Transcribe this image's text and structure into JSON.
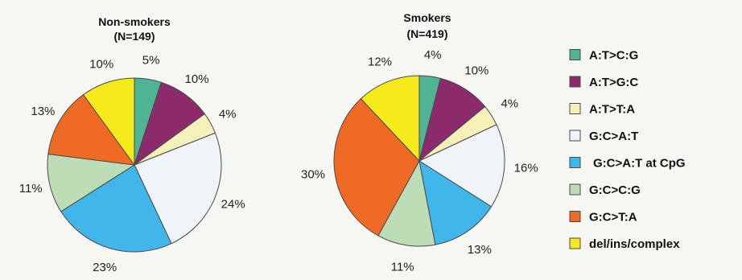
{
  "chart_data": [
    {
      "type": "pie",
      "title": "Non-smokers",
      "subtitle": "(N=149)",
      "categories": [
        "A:T>C:G",
        "A:T>G:C",
        "A:T>T:A",
        "G:C>A:T",
        "G:C>A:T at CpG",
        "G:C>C:G",
        "G:C>T:A",
        "del/ins/complex"
      ],
      "values": [
        5,
        10,
        4,
        24,
        23,
        11,
        13,
        10
      ],
      "labels": [
        "5%",
        "10%",
        "4%",
        "24%",
        "23%",
        "11%",
        "13%",
        "10%"
      ]
    },
    {
      "type": "pie",
      "title": "Smokers",
      "subtitle": "(N=419)",
      "categories": [
        "A:T>C:G",
        "A:T>G:C",
        "A:T>T:A",
        "G:C>A:T",
        "G:C>A:T at CpG",
        "G:C>C:G",
        "G:C>T:A",
        "del/ins/complex"
      ],
      "values": [
        4,
        10,
        4,
        16,
        13,
        11,
        30,
        12
      ],
      "labels": [
        "4%",
        "10%",
        "4%",
        "16%",
        "13%",
        "11%",
        "30%",
        "12%"
      ]
    }
  ],
  "legend": {
    "placement": "right",
    "items": [
      {
        "label": "A:T>C:G",
        "color": "#4fb394"
      },
      {
        "label": "A:T>G:C",
        "color": "#8c2a6b"
      },
      {
        "label": "A:T>T:A",
        "color": "#f6f1b8"
      },
      {
        "label": "G:C>A:T",
        "color": "#eef4f8"
      },
      {
        "label": "G:C>A:T at CpG",
        "color": "#40b6ea"
      },
      {
        "label": "G:C>C:G",
        "color": "#bcddb5"
      },
      {
        "label": "G:C>T:A",
        "color": "#ef6a24"
      },
      {
        "label": "del/ins/complex",
        "color": "#f7ea1a"
      }
    ]
  }
}
